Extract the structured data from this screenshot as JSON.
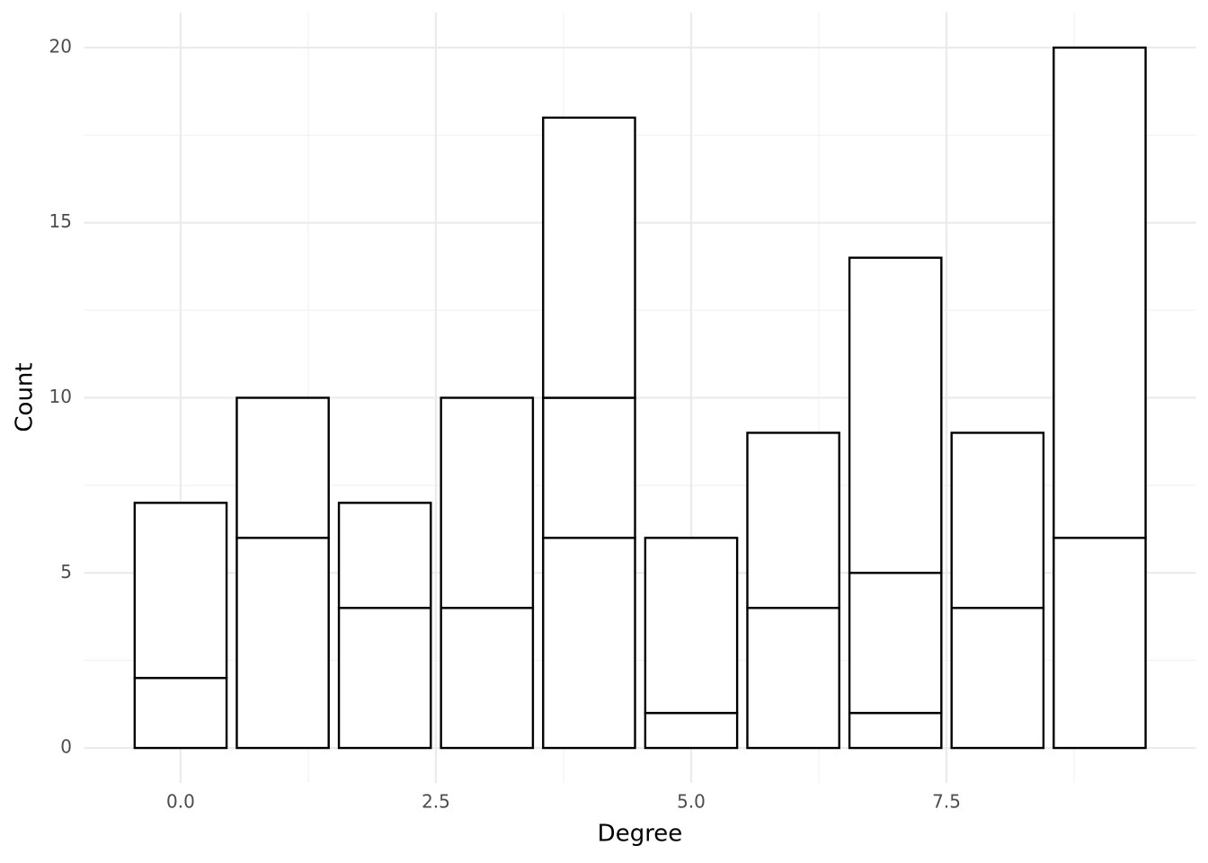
{
  "chart_data": {
    "type": "bar",
    "stacked": true,
    "x_label": "Degree",
    "y_label": "Count",
    "x": [
      0,
      1,
      2,
      3,
      4,
      5,
      6,
      7,
      8,
      9
    ],
    "bar_width": 0.9,
    "series": [
      {
        "color": "#ffffff",
        "values": [
          2,
          6,
          4,
          4,
          6,
          1,
          4,
          1,
          4,
          6
        ]
      },
      {
        "color": "#ffffff",
        "values": [
          5,
          4,
          3,
          6,
          4,
          5,
          5,
          4,
          5,
          14
        ]
      },
      {
        "color": "#ffffff",
        "values": [
          null,
          null,
          null,
          null,
          8,
          null,
          null,
          9,
          null,
          null
        ]
      }
    ],
    "outline_color": "#000000",
    "xlim": [
      -0.945,
      9.945
    ],
    "xticks": [
      {
        "value": 0,
        "label": "0.0"
      },
      2.5,
      {
        "value": 5,
        "label": "5.0"
      },
      7.5
    ],
    "x_minor_ticks": [
      1.25,
      3.75,
      6.25,
      8.75
    ],
    "ylim": [
      -1,
      21
    ],
    "yticks": [
      0,
      5,
      10,
      15,
      20
    ],
    "y_minor_ticks": [
      2.5,
      7.5,
      12.5,
      17.5
    ],
    "grid": true
  }
}
